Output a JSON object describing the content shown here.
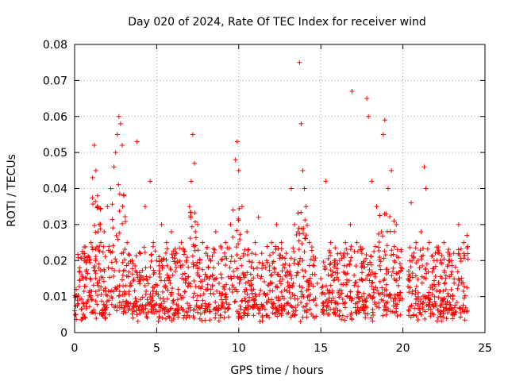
{
  "chart_data": {
    "type": "scatter",
    "title": "Day 020 of 2024, Rate Of TEC Index for receiver wind",
    "xlabel": "GPS time / hours",
    "ylabel": "ROTI / TECUs",
    "xlim": [
      0,
      25
    ],
    "ylim": [
      0,
      0.08
    ],
    "xticks": [
      0,
      5,
      10,
      15,
      20,
      25
    ],
    "xtick_labels": [
      "0",
      "5",
      "10",
      "15",
      "20",
      "25"
    ],
    "yticks": [
      0,
      0.01,
      0.02,
      0.03,
      0.04,
      0.05,
      0.06,
      0.07,
      0.08
    ],
    "ytick_labels": [
      "0",
      "0.01",
      "0.02",
      "0.03",
      "0.04",
      "0.05",
      "0.06",
      "0.07",
      "0.08"
    ],
    "grid": true,
    "marker": "+",
    "color": "#ff0000",
    "series": [
      {
        "x": [
          0.1,
          0.3,
          0.5,
          0.7,
          0.9,
          1.0,
          1.1,
          1.2,
          1.3,
          1.4,
          1.5,
          1.6,
          1.8,
          2.0,
          2.2,
          2.4,
          2.5,
          2.6,
          2.7,
          2.8,
          2.9,
          3.0,
          3.2,
          3.5,
          3.8,
          4.0,
          4.3,
          4.6,
          4.8,
          5.0,
          5.3,
          5.6,
          5.9,
          6.2,
          6.5,
          6.8,
          7.0,
          7.1,
          7.2,
          7.3,
          7.5,
          7.8,
          8.0,
          8.3,
          8.6,
          8.9,
          9.2,
          9.5,
          9.8,
          9.9,
          10.0,
          10.2,
          10.5,
          10.8,
          11.0,
          11.2,
          11.4,
          11.7,
          12.0,
          12.3,
          12.6,
          12.9,
          13.2,
          13.4,
          13.6,
          13.7,
          13.8,
          13.9,
          14.0,
          14.1,
          14.3,
          14.6,
          15.0,
          15.3,
          15.6,
          15.9,
          16.2,
          16.5,
          16.8,
          16.9,
          17.2,
          17.5,
          17.8,
          17.9,
          18.1,
          18.4,
          18.7,
          18.8,
          18.9,
          19.1,
          19.3,
          19.6,
          20.5,
          20.8,
          21.1,
          21.3,
          21.4,
          21.6,
          21.9,
          22.2,
          22.5,
          22.8,
          23.1,
          23.4,
          23.7,
          23.9
        ],
        "y": [
          0.012,
          0.018,
          0.022,
          0.015,
          0.02,
          0.025,
          0.043,
          0.052,
          0.045,
          0.038,
          0.03,
          0.025,
          0.028,
          0.035,
          0.04,
          0.046,
          0.05,
          0.055,
          0.06,
          0.058,
          0.052,
          0.038,
          0.025,
          0.02,
          0.053,
          0.022,
          0.035,
          0.042,
          0.025,
          0.02,
          0.03,
          0.025,
          0.028,
          0.022,
          0.025,
          0.02,
          0.035,
          0.042,
          0.055,
          0.047,
          0.03,
          0.025,
          0.022,
          0.02,
          0.028,
          0.024,
          0.025,
          0.03,
          0.048,
          0.053,
          0.045,
          0.035,
          0.028,
          0.022,
          0.025,
          0.032,
          0.022,
          0.02,
          0.025,
          0.03,
          0.025,
          0.022,
          0.04,
          0.03,
          0.028,
          0.075,
          0.058,
          0.045,
          0.04,
          0.035,
          0.025,
          0.02,
          0.015,
          0.042,
          0.025,
          0.02,
          0.022,
          0.025,
          0.03,
          0.067,
          0.025,
          0.022,
          0.065,
          0.06,
          0.042,
          0.035,
          0.028,
          0.055,
          0.059,
          0.04,
          0.045,
          0.03,
          0.036,
          0.025,
          0.028,
          0.046,
          0.04,
          0.025,
          0.02,
          0.022,
          0.025,
          0.02,
          0.022,
          0.03,
          0.025,
          0.027
        ]
      }
    ]
  }
}
